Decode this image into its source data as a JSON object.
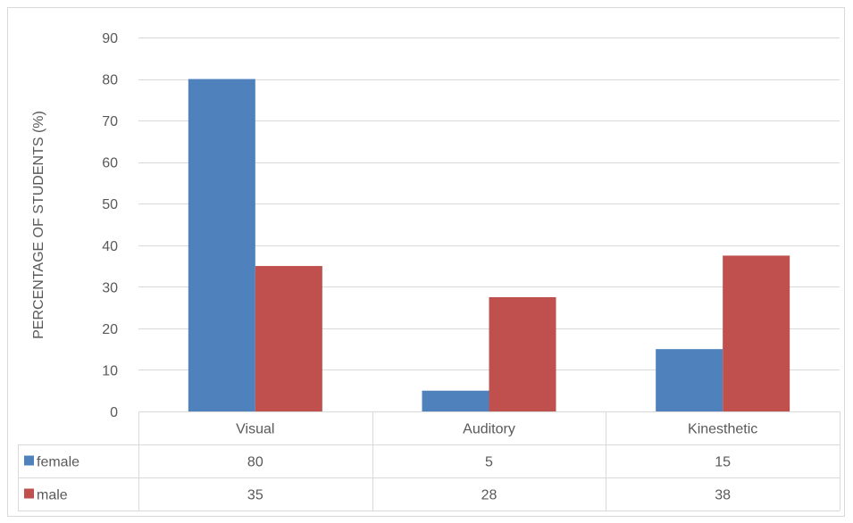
{
  "chart_data": {
    "type": "bar",
    "title": "",
    "xlabel": "",
    "ylabel": "PERCENTAGE OF STUDENTS (%)",
    "ylim": [
      0,
      90
    ],
    "yticks": [
      0,
      10,
      20,
      30,
      40,
      50,
      60,
      70,
      80,
      90
    ],
    "grid": true,
    "legend": "data-table",
    "categories": [
      "Visual",
      "Auditory",
      "Kinesthetic"
    ],
    "series": [
      {
        "name": "female",
        "color": "#4F81BD",
        "values": [
          80,
          5,
          15
        ],
        "labels": [
          "80",
          "5",
          "15"
        ]
      },
      {
        "name": "male",
        "color": "#C0504D",
        "values": [
          35,
          27.5,
          37.5
        ],
        "labels": [
          "35",
          "28",
          "38"
        ]
      }
    ]
  }
}
